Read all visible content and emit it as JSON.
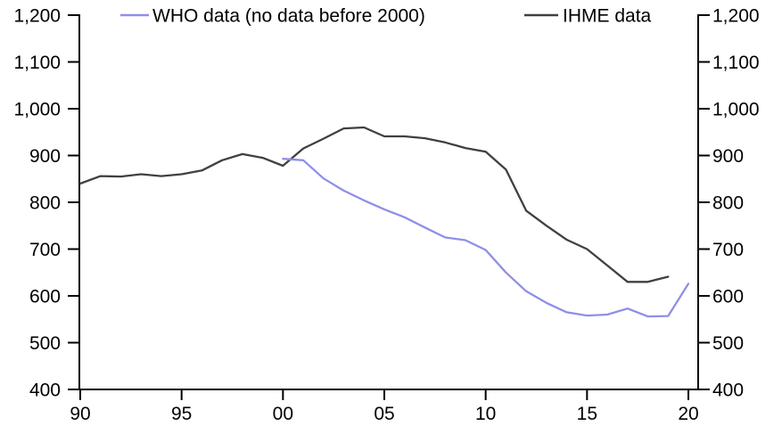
{
  "chart_data": {
    "type": "line",
    "title": "",
    "xlabel": "",
    "ylabel": "",
    "grid": false,
    "legend_position": "top",
    "xlim": [
      1990,
      2020.5
    ],
    "ylim": [
      400,
      1200
    ],
    "x_tick_years": [
      1990,
      1995,
      2000,
      2005,
      2010,
      2015,
      2020
    ],
    "x_tick_labels": [
      "90",
      "95",
      "00",
      "05",
      "10",
      "15",
      "20"
    ],
    "y_ticks": [
      400,
      500,
      600,
      700,
      800,
      900,
      1000,
      1100,
      1200
    ],
    "y_tick_labels": [
      "400",
      "500",
      "600",
      "700",
      "800",
      "900",
      "1,000",
      "1,100",
      "1,200"
    ],
    "axis_color": "#000000",
    "series": [
      {
        "name": "WHO data (no data before 2000)",
        "color": "#8f8fe8",
        "x": [
          2000,
          2001,
          2002,
          2003,
          2004,
          2005,
          2006,
          2007,
          2008,
          2009,
          2010,
          2011,
          2012,
          2013,
          2014,
          2015,
          2016,
          2017,
          2018,
          2019,
          2020
        ],
        "values": [
          893,
          890,
          851,
          825,
          804,
          785,
          768,
          746,
          725,
          719,
          698,
          650,
          610,
          585,
          565,
          558,
          560,
          573,
          556,
          557,
          626
        ]
      },
      {
        "name": "IHME data",
        "color": "#404040",
        "x": [
          1990,
          1991,
          1992,
          1993,
          1994,
          1995,
          1996,
          1997,
          1998,
          1999,
          2000,
          2001,
          2002,
          2003,
          2004,
          2005,
          2006,
          2007,
          2008,
          2009,
          2010,
          2011,
          2012,
          2013,
          2014,
          2015,
          2016,
          2017,
          2018,
          2019
        ],
        "values": [
          840,
          856,
          855,
          860,
          856,
          860,
          868,
          890,
          903,
          895,
          878,
          915,
          936,
          958,
          960,
          941,
          941,
          937,
          928,
          916,
          908,
          870,
          782,
          750,
          720,
          700,
          665,
          630,
          630,
          641
        ]
      }
    ]
  }
}
